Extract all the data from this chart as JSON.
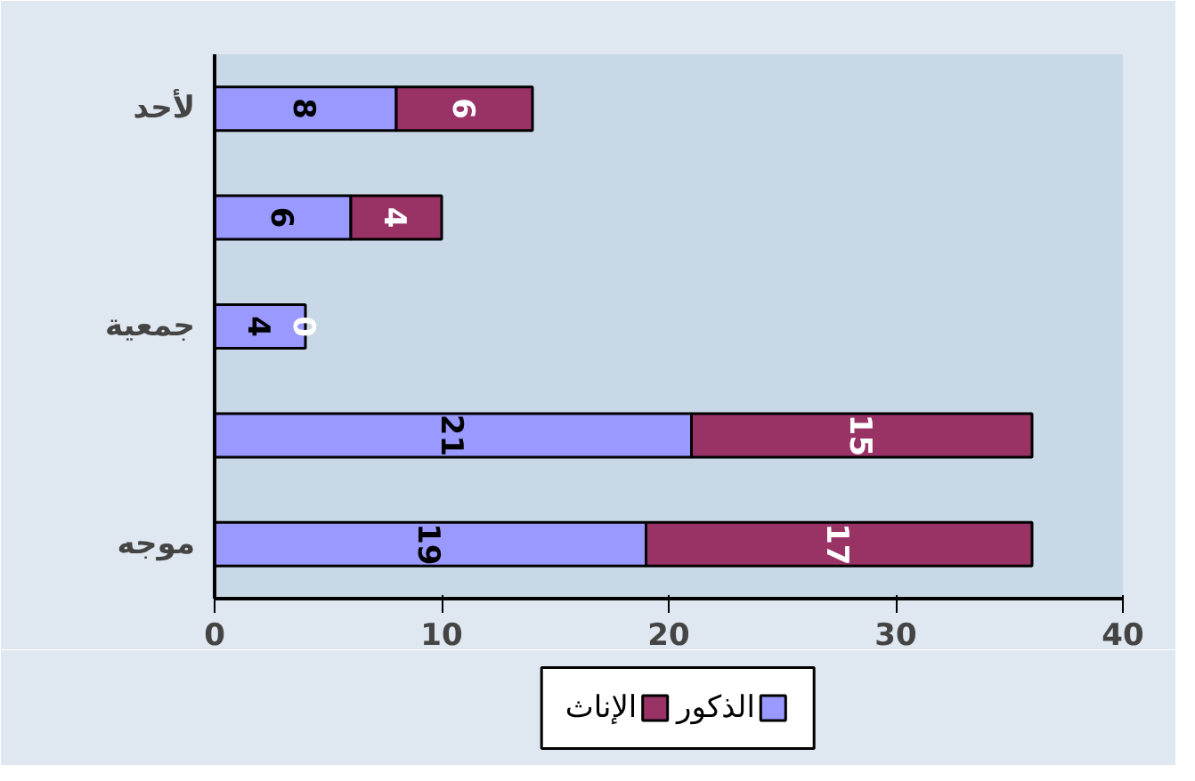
{
  "chart_data": {
    "type": "bar",
    "orientation": "horizontal",
    "stacked": true,
    "categories": [
      "لأحد",
      null,
      "جمعية",
      null,
      "موجه"
    ],
    "series": [
      {
        "name": "الذكور",
        "color": "#9999ff",
        "values": [
          8,
          6,
          4,
          21,
          19
        ]
      },
      {
        "name": "الإناث",
        "color": "#993366",
        "values": [
          6,
          4,
          0,
          15,
          17
        ]
      }
    ],
    "xlim": [
      0,
      40
    ],
    "xticks": [
      0,
      10,
      20,
      30,
      40
    ],
    "grid": false,
    "legend": "bottom",
    "data_labels": true
  }
}
